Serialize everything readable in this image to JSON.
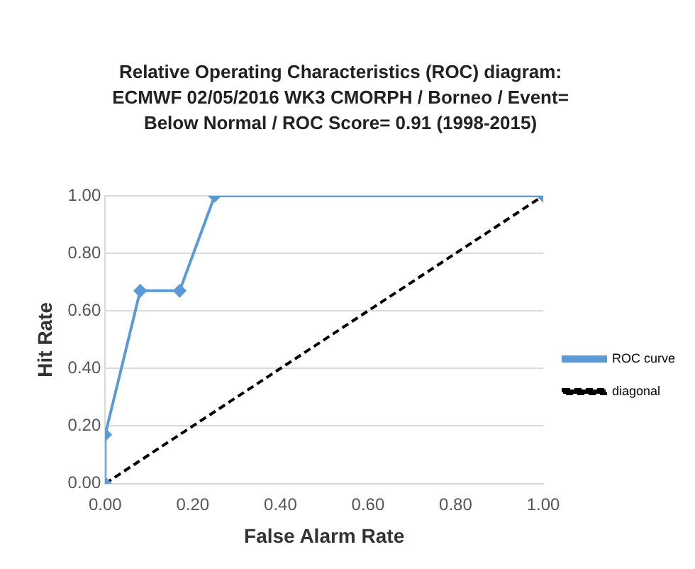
{
  "chart_data": {
    "type": "line",
    "title": "Relative Operating Characteristics (ROC) diagram: ECMWF 02/05/2016 WK3 CMORPH / Borneo / Event= Below Normal  / ROC Score= 0.91 (1998-2015)",
    "xlabel": "False Alarm Rate",
    "ylabel": "Hit Rate",
    "series": [
      {
        "name": "ROC curve",
        "color": "#5b9bd5",
        "x": [
          0,
          0,
          0.08,
          0.17,
          0.25,
          1
        ],
        "values": [
          0,
          0.17,
          0.67,
          0.67,
          1,
          1
        ],
        "marker": "diamond",
        "line_style": "solid"
      },
      {
        "name": "diagonal",
        "color": "#000000",
        "x": [
          0,
          1
        ],
        "values": [
          0,
          1
        ],
        "marker": "none",
        "line_style": "dashed"
      }
    ],
    "xlim": [
      0,
      1
    ],
    "xticks": [
      {
        "value": 0,
        "label": "0.00"
      },
      {
        "value": 0.2,
        "label": "0.20"
      },
      {
        "value": 0.4,
        "label": "0.40"
      },
      {
        "value": 0.6,
        "label": "0.60"
      },
      {
        "value": 0.8,
        "label": "0.80"
      },
      {
        "value": 1,
        "label": "1.00"
      }
    ],
    "ylim": [
      0,
      1
    ],
    "yticks": [
      {
        "value": 0,
        "label": "0.00"
      },
      {
        "value": 0.2,
        "label": "0.20"
      },
      {
        "value": 0.4,
        "label": "0.40"
      },
      {
        "value": 0.6,
        "label": "0.60"
      },
      {
        "value": 0.8,
        "label": "0.80"
      },
      {
        "value": 1,
        "label": "1.00"
      }
    ],
    "grid": "y",
    "legend": "right"
  }
}
